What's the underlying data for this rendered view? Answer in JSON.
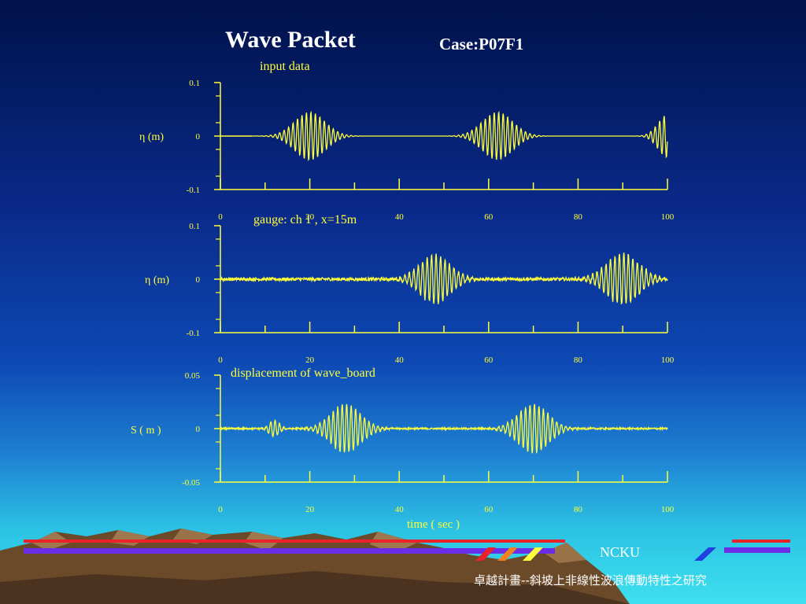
{
  "header": {
    "title": "Wave Packet",
    "case": "Case:P07F1"
  },
  "footer": {
    "ncku": "NCKU",
    "project": "卓越計畫--斜坡上非線性波浪傳動特性之研究"
  },
  "colors": {
    "plot": "#ffff3a",
    "red_bar": "#e8242a",
    "blue_bar": "#6a2ee8"
  },
  "chart_data": [
    {
      "type": "line",
      "title": "input data",
      "ylabel": "η (m)",
      "xlim": [
        0,
        100
      ],
      "ylim": [
        -0.1,
        0.1
      ],
      "x_ticks": [
        "0",
        "20",
        "40",
        "60",
        "80",
        "100"
      ],
      "y_ticks": [
        "0.1",
        "0",
        "-0.1"
      ],
      "packets": [
        {
          "center": 20,
          "width": 4.8,
          "amplitude": 0.045,
          "period": 1.0
        },
        {
          "center": 62,
          "width": 4.8,
          "amplitude": 0.045,
          "period": 1.0
        },
        {
          "center": 100,
          "width": 3.0,
          "amplitude": 0.04,
          "period": 1.0
        }
      ],
      "noise": 0.0,
      "end_x": 100
    },
    {
      "type": "line",
      "title": "gauge: ch 1 , x=15m",
      "ylabel": "η (m)",
      "xlim": [
        0,
        100
      ],
      "ylim": [
        -0.1,
        0.1
      ],
      "x_ticks": [
        "0",
        "20",
        "40",
        "60",
        "80",
        "100"
      ],
      "y_ticks": [
        "0.1",
        "0",
        "-0.1"
      ],
      "packets": [
        {
          "center": 48,
          "width": 4.8,
          "amplitude": 0.046,
          "period": 1.0
        },
        {
          "center": 90,
          "width": 5.2,
          "amplitude": 0.048,
          "period": 1.0
        }
      ],
      "noise": 0.003,
      "end_x": 100
    },
    {
      "type": "line",
      "title": "displacement of wave_board",
      "ylabel": "S ( m )",
      "xlabel": "time ( sec )",
      "xlim": [
        0,
        100
      ],
      "ylim": [
        -0.05,
        0.05
      ],
      "x_ticks": [
        "0",
        "20",
        "40",
        "60",
        "80",
        "100"
      ],
      "y_ticks": [
        "0.05",
        "0",
        "-0.05"
      ],
      "packets": [
        {
          "center": 12,
          "width": 1.6,
          "amplitude": 0.008,
          "period": 1.0
        },
        {
          "center": 28,
          "width": 4.8,
          "amplitude": 0.023,
          "period": 1.0
        },
        {
          "center": 70,
          "width": 4.8,
          "amplitude": 0.023,
          "period": 1.0
        }
      ],
      "noise": 0.0008,
      "end_x": 100
    }
  ]
}
